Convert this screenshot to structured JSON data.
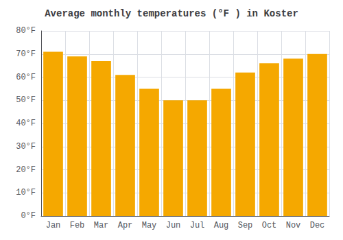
{
  "chart_data": {
    "type": "bar",
    "title": "Average monthly temperatures (°F ) in Koster",
    "categories": [
      "Jan",
      "Feb",
      "Mar",
      "Apr",
      "May",
      "Jun",
      "Jul",
      "Aug",
      "Sep",
      "Oct",
      "Nov",
      "Dec"
    ],
    "values": [
      71,
      69,
      67,
      61,
      55,
      50,
      50,
      55,
      62,
      66,
      68,
      70
    ],
    "color": "#F5A800",
    "ylim": [
      0,
      80
    ],
    "yticks": [
      {
        "value": 0,
        "label": "0°F"
      },
      {
        "value": 10,
        "label": "10°F"
      },
      {
        "value": 20,
        "label": "20°F"
      },
      {
        "value": 30,
        "label": "30°F"
      },
      {
        "value": 40,
        "label": "40°F"
      },
      {
        "value": 50,
        "label": "50°F"
      },
      {
        "value": 60,
        "label": "60°F"
      },
      {
        "value": 70,
        "label": "70°F"
      },
      {
        "value": 80,
        "label": "80°F"
      }
    ],
    "grid": true
  }
}
